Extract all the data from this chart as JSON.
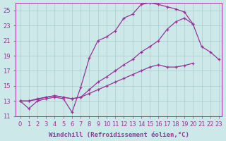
{
  "background_color": "#cce8e8",
  "grid_color": "#aacccc",
  "line_color": "#993399",
  "xlabel": "Windchill (Refroidissement éolien,°C)",
  "xlim": [
    -0.5,
    23.3
  ],
  "ylim": [
    11,
    26
  ],
  "yticks": [
    11,
    13,
    15,
    17,
    19,
    21,
    23,
    25
  ],
  "xticks": [
    0,
    1,
    2,
    3,
    4,
    5,
    6,
    7,
    8,
    9,
    10,
    11,
    12,
    13,
    14,
    15,
    16,
    17,
    18,
    19,
    20,
    21,
    22,
    23
  ],
  "series": [
    {
      "x": [
        0,
        1,
        2,
        3,
        4,
        5,
        6,
        7,
        8,
        9,
        10,
        11,
        12,
        13,
        14,
        15,
        16,
        17,
        18,
        19,
        20,
        21,
        22,
        23
      ],
      "y": [
        13.0,
        12.0,
        13.0,
        13.3,
        13.5,
        13.3,
        11.5,
        14.8,
        18.7,
        21.0,
        21.5,
        22.3,
        24.0,
        24.5,
        25.8,
        26.0,
        25.8,
        25.5,
        25.2,
        24.8,
        23.2,
        null,
        null,
        null
      ]
    },
    {
      "x": [
        0,
        1,
        2,
        3,
        4,
        5,
        6,
        7,
        8,
        9,
        10,
        11,
        12,
        13,
        14,
        15,
        16,
        17,
        18,
        19,
        20,
        21,
        22,
        23
      ],
      "y": [
        13.0,
        13.0,
        13.3,
        13.5,
        13.7,
        13.5,
        13.3,
        13.5,
        14.5,
        15.5,
        16.2,
        17.0,
        17.8,
        18.5,
        19.5,
        20.2,
        21.0,
        22.5,
        23.5,
        24.0,
        23.2,
        20.2,
        19.5,
        18.5
      ]
    },
    {
      "x": [
        0,
        1,
        2,
        3,
        4,
        5,
        6,
        7,
        8,
        9,
        10,
        11,
        12,
        13,
        14,
        15,
        16,
        17,
        18,
        19,
        20,
        21,
        22,
        23
      ],
      "y": [
        13.0,
        13.0,
        13.2,
        13.5,
        13.7,
        13.5,
        13.3,
        13.5,
        14.0,
        14.5,
        15.0,
        15.5,
        16.0,
        16.5,
        17.0,
        17.5,
        17.8,
        17.5,
        17.5,
        17.7,
        18.0,
        null,
        null,
        null
      ]
    }
  ],
  "tick_fontsize": 6,
  "xlabel_fontsize": 6.5,
  "linewidth": 0.9
}
